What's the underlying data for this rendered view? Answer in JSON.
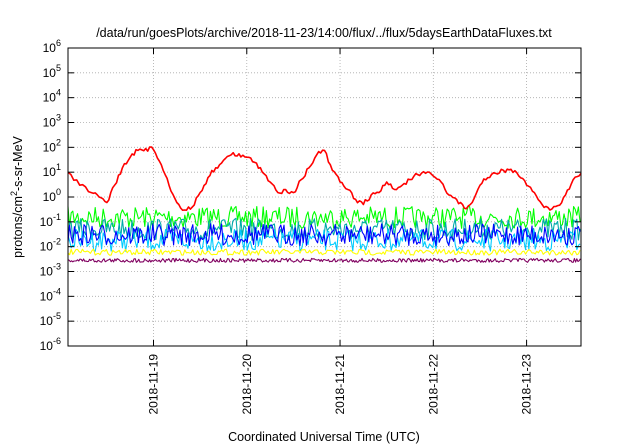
{
  "chart_data": {
    "type": "line",
    "title": "/data/run/goesPlots/archive/2018-11-23/14:00/flux/../flux/5daysEarthDataFluxes.txt",
    "xlabel": "Coordinated Universal Time (UTC)",
    "ylabel_main": "protons/cm",
    "ylabel_sup": "2",
    "ylabel_tail": "-s-sr-MeV",
    "y_scale": "log",
    "ylim": [
      1e-06,
      1000000.0
    ],
    "xlim": [
      "2018-11-18 02:00",
      "2018-11-23 14:00"
    ],
    "grid": true,
    "legend": "none",
    "y_ticks": [
      {
        "base": "10",
        "exp": "-6"
      },
      {
        "base": "10",
        "exp": "-5"
      },
      {
        "base": "10",
        "exp": "-4"
      },
      {
        "base": "10",
        "exp": "-3"
      },
      {
        "base": "10",
        "exp": "-2"
      },
      {
        "base": "10",
        "exp": "-1"
      },
      {
        "base": "10",
        "exp": "0"
      },
      {
        "base": "10",
        "exp": "1"
      },
      {
        "base": "10",
        "exp": "2"
      },
      {
        "base": "10",
        "exp": "3"
      },
      {
        "base": "10",
        "exp": "4"
      },
      {
        "base": "10",
        "exp": "5"
      },
      {
        "base": "10",
        "exp": "6"
      }
    ],
    "x_ticks": [
      "2018-11-19",
      "2018-11-20",
      "2018-11-21",
      "2018-11-22",
      "2018-11-23"
    ],
    "series": [
      {
        "color": "#ff0000",
        "x": [
          "2018-11-18 02:00",
          "2018-11-18 05:00",
          "2018-11-18 08:00",
          "2018-11-18 10:00",
          "2018-11-18 12:00",
          "2018-11-18 14:00",
          "2018-11-18 16:00",
          "2018-11-18 18:00",
          "2018-11-18 20:00",
          "2018-11-18 22:00",
          "2018-11-19 00:00",
          "2018-11-19 02:00",
          "2018-11-19 04:00",
          "2018-11-19 06:00",
          "2018-11-19 08:00",
          "2018-11-19 10:00",
          "2018-11-19 12:00",
          "2018-11-19 14:00",
          "2018-11-19 16:00",
          "2018-11-19 18:00",
          "2018-11-19 20:00",
          "2018-11-19 22:00",
          "2018-11-20 00:00",
          "2018-11-20 02:00",
          "2018-11-20 04:00",
          "2018-11-20 06:00",
          "2018-11-20 08:00",
          "2018-11-20 10:00",
          "2018-11-20 12:00",
          "2018-11-20 14:00",
          "2018-11-20 16:00",
          "2018-11-20 18:00",
          "2018-11-20 20:00",
          "2018-11-20 22:00",
          "2018-11-21 00:00",
          "2018-11-21 02:00",
          "2018-11-21 04:00",
          "2018-11-21 06:00",
          "2018-11-21 08:00",
          "2018-11-21 10:00",
          "2018-11-21 12:00",
          "2018-11-21 14:00",
          "2018-11-21 16:00",
          "2018-11-21 18:00",
          "2018-11-21 20:00",
          "2018-11-21 22:00",
          "2018-11-22 00:00",
          "2018-11-22 02:00",
          "2018-11-22 04:00",
          "2018-11-22 06:00",
          "2018-11-22 08:00",
          "2018-11-22 10:00",
          "2018-11-22 12:00",
          "2018-11-22 14:00",
          "2018-11-22 16:00",
          "2018-11-22 18:00",
          "2018-11-22 20:00",
          "2018-11-22 22:00",
          "2018-11-23 00:00",
          "2018-11-23 02:00",
          "2018-11-23 04:00",
          "2018-11-23 06:00",
          "2018-11-23 08:00",
          "2018-11-23 10:00",
          "2018-11-23 12:00",
          "2018-11-23 14:00"
        ],
        "y": [
          10,
          3,
          1.5,
          1,
          0.6,
          3,
          15,
          40,
          75,
          90,
          80,
          20,
          3,
          0.6,
          0.3,
          0.4,
          1.5,
          6,
          15,
          30,
          50,
          55,
          40,
          25,
          10,
          4,
          1.5,
          2,
          1.5,
          5,
          15,
          50,
          75,
          12,
          4,
          2,
          0.8,
          0.5,
          1.2,
          1.5,
          4,
          2,
          3,
          5,
          8,
          9,
          7,
          4,
          1.2,
          0.8,
          0.35,
          0.6,
          3,
          6,
          9,
          12,
          13,
          7,
          3,
          1.5,
          0.5,
          0.3,
          0.45,
          1.2,
          5,
          9
        ]
      },
      {
        "color": "#00ff00",
        "x": [
          "2018-11-18 02:00",
          "2018-11-23 14:00"
        ],
        "y": [
          0.15,
          0.15
        ]
      },
      {
        "color": "#00aaaa",
        "x": [
          "2018-11-18 02:00",
          "2018-11-23 14:00"
        ],
        "y": [
          0.05,
          0.05
        ]
      },
      {
        "color": "#0000ff",
        "x": [
          "2018-11-18 02:00",
          "2018-11-23 14:00"
        ],
        "y": [
          0.03,
          0.03
        ]
      },
      {
        "color": "#00ccff",
        "x": [
          "2018-11-18 02:00",
          "2018-11-23 14:00"
        ],
        "y": [
          0.018,
          0.018
        ]
      },
      {
        "color": "#ffff00",
        "x": [
          "2018-11-18 02:00",
          "2018-11-23 14:00"
        ],
        "y": [
          0.006,
          0.006
        ]
      },
      {
        "color": "#800060",
        "x": [
          "2018-11-18 02:00",
          "2018-11-23 14:00"
        ],
        "y": [
          0.0028,
          0.0028
        ]
      }
    ]
  }
}
